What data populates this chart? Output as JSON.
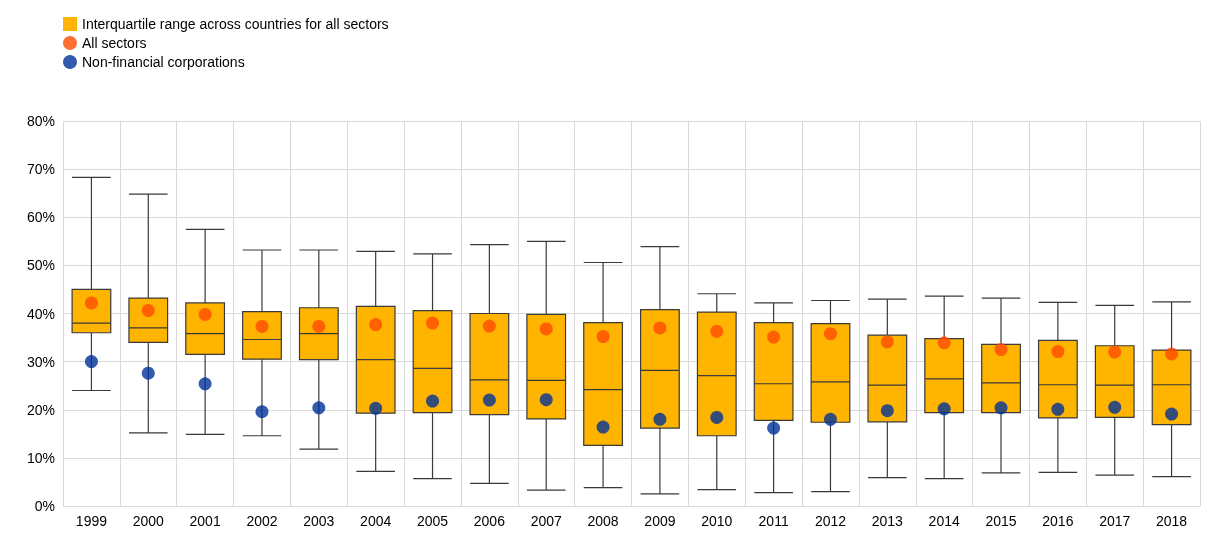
{
  "chart_data": {
    "type": "box",
    "categories": [
      "1999",
      "2000",
      "2001",
      "2002",
      "2003",
      "2004",
      "2005",
      "2006",
      "2007",
      "2008",
      "2009",
      "2010",
      "2011",
      "2012",
      "2013",
      "2014",
      "2015",
      "2016",
      "2017",
      "2018"
    ],
    "ylim": [
      0,
      80
    ],
    "yticks": [
      {
        "value": 0,
        "label": "0%"
      },
      {
        "value": 10,
        "label": "10%"
      },
      {
        "value": 20,
        "label": "20%"
      },
      {
        "value": 30,
        "label": "30%"
      },
      {
        "value": 40,
        "label": "40%"
      },
      {
        "value": 50,
        "label": "50%"
      },
      {
        "value": 60,
        "label": "60%"
      },
      {
        "value": 70,
        "label": "70%"
      },
      {
        "value": 80,
        "label": "80%"
      }
    ],
    "grid": true,
    "legend": "top left",
    "marker": "circle",
    "series": [
      {
        "name": "Interquartile range across countries for all sectors",
        "color": "#ffb400",
        "boxes": [
          {
            "low": 24,
            "q1": 36,
            "median": 38,
            "q3": 45,
            "high": 68.3
          },
          {
            "low": 15.2,
            "q1": 34,
            "median": 37,
            "q3": 43.2,
            "high": 64.8
          },
          {
            "low": 14.9,
            "q1": 31.5,
            "median": 35.8,
            "q3": 42.2,
            "high": 57.5
          },
          {
            "low": 14.6,
            "q1": 30.5,
            "median": 34.6,
            "q3": 40.4,
            "high": 53.2
          },
          {
            "low": 11.8,
            "q1": 30.4,
            "median": 35.8,
            "q3": 41.2,
            "high": 53.2
          },
          {
            "low": 7.2,
            "q1": 19.3,
            "median": 30.4,
            "q3": 41.5,
            "high": 52.9
          },
          {
            "low": 5.7,
            "q1": 19.4,
            "median": 28.6,
            "q3": 40.6,
            "high": 52.4
          },
          {
            "low": 4.7,
            "q1": 19,
            "median": 26.2,
            "q3": 40,
            "high": 54.3
          },
          {
            "low": 3.3,
            "q1": 18.1,
            "median": 26.1,
            "q3": 39.8,
            "high": 55
          },
          {
            "low": 3.8,
            "q1": 12.6,
            "median": 24.2,
            "q3": 38.1,
            "high": 50.6
          },
          {
            "low": 2.5,
            "q1": 16.2,
            "median": 28.2,
            "q3": 40.8,
            "high": 53.9
          },
          {
            "low": 3.4,
            "q1": 14.6,
            "median": 27.1,
            "q3": 40.3,
            "high": 44.1
          },
          {
            "low": 2.8,
            "q1": 17.8,
            "median": 25.4,
            "q3": 38.1,
            "high": 42.2
          },
          {
            "low": 3,
            "q1": 17.4,
            "median": 25.8,
            "q3": 37.9,
            "high": 42.7
          },
          {
            "low": 5.9,
            "q1": 17.5,
            "median": 25.1,
            "q3": 35.5,
            "high": 43
          },
          {
            "low": 5.7,
            "q1": 19.4,
            "median": 26.4,
            "q3": 34.8,
            "high": 43.6
          },
          {
            "low": 6.9,
            "q1": 19.4,
            "median": 25.6,
            "q3": 33.6,
            "high": 43.2
          },
          {
            "low": 7,
            "q1": 18.3,
            "median": 25.2,
            "q3": 34.4,
            "high": 42.3
          },
          {
            "low": 6.4,
            "q1": 18.4,
            "median": 25.1,
            "q3": 33.3,
            "high": 41.7
          },
          {
            "low": 6.1,
            "q1": 16.9,
            "median": 25.2,
            "q3": 32.4,
            "high": 42.4
          }
        ]
      },
      {
        "name": "All sectors",
        "type": "scatter",
        "color": "#ff4b00",
        "values": [
          42.2,
          40.6,
          39.8,
          37.3,
          37.3,
          37.7,
          38,
          37.4,
          36.8,
          35.2,
          37,
          36.3,
          35.1,
          35.8,
          34.1,
          33.9,
          32.5,
          32.1,
          32,
          31.6
        ]
      },
      {
        "name": "Non-financial corporations",
        "type": "scatter",
        "color": "#003299",
        "values": [
          30,
          27.6,
          25.4,
          19.6,
          20.4,
          20.3,
          21.8,
          22,
          22.1,
          16.4,
          18,
          18.4,
          16.2,
          18,
          19.8,
          20.2,
          20.4,
          20.1,
          20.5,
          19.1
        ]
      }
    ]
  }
}
